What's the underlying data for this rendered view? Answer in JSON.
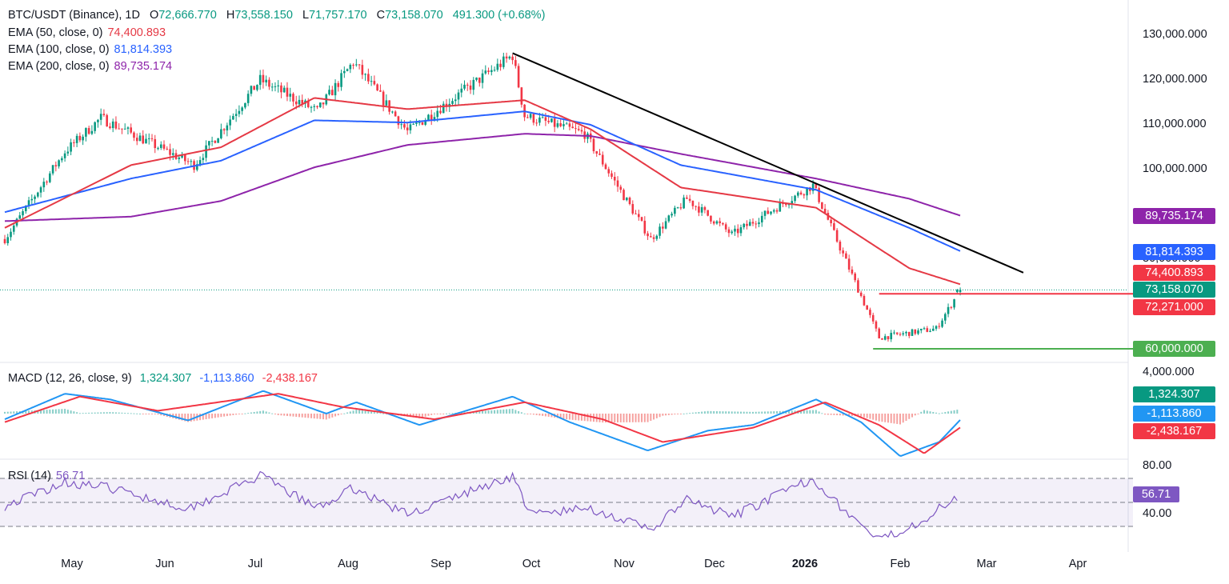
{
  "header": {
    "symbol": "BTC/USDT (Binance), 1D",
    "o_label": "O",
    "o": "72,666.770",
    "h_label": "H",
    "h": "73,558.150",
    "l_label": "L",
    "l": "71,757.170",
    "c_label": "C",
    "c": "73,158.070",
    "change": "491.300 (+0.68%)"
  },
  "ema_legend": [
    {
      "label": "EMA (50, close, 0)",
      "value": "74,400.893"
    },
    {
      "label": "EMA (100, close, 0)",
      "value": "81,814.393"
    },
    {
      "label": "EMA (200, close, 0)",
      "value": "89,735.174"
    }
  ],
  "macd_legend": {
    "label": "MACD (12, 26, close, 9)",
    "hist": "1,324.307",
    "macd": "-1,113.860",
    "signal": "-2,438.167"
  },
  "rsi_legend": {
    "label": "RSI (14)",
    "value": "56.71"
  },
  "price_labels": {
    "ema200": "89,735.174",
    "ema100": "81,814.393",
    "ema50": "74,400.893",
    "last": "73,158.070",
    "resistance": "72,271.000",
    "support": "60,000.000"
  },
  "macd_labels": {
    "hist": "1,324.307",
    "macd": "-1,113.860",
    "signal": "-2,438.167"
  },
  "rsi_label": "56.71",
  "colors": {
    "up": "#089981",
    "down": "#f23645",
    "ema50": "#e53945",
    "ema100": "#2962ff",
    "ema200": "#8e24aa",
    "trendline": "#000000",
    "support": "#4caf50",
    "resistance": "#f23645",
    "rsi": "#7e57c2",
    "macd": "#2196f3",
    "signal": "#f23645"
  },
  "chart_data": [
    {
      "type": "candlestick",
      "panel": "price",
      "title": "BTC/USDT (Binance), 1D",
      "y_ticks": [
        "130,000.000",
        "120,000.000",
        "110,000.000",
        "100,000.000",
        "80,000.000"
      ],
      "x_ticks": [
        "May",
        "Jun",
        "Jul",
        "Aug",
        "Sep",
        "Oct",
        "Nov",
        "Dec",
        "2026",
        "Feb",
        "Mar",
        "Apr"
      ],
      "ylim": [
        56000,
        134000
      ],
      "key_points": [
        {
          "date": "2025-04-20",
          "close": 84500
        },
        {
          "date": "2025-05-10",
          "close": 104000
        },
        {
          "date": "2025-05-22",
          "close": 111500
        },
        {
          "date": "2025-06-22",
          "close": 101000
        },
        {
          "date": "2025-07-14",
          "close": 120000
        },
        {
          "date": "2025-08-02",
          "close": 113000
        },
        {
          "date": "2025-08-14",
          "close": 124000
        },
        {
          "date": "2025-09-01",
          "close": 108500
        },
        {
          "date": "2025-10-06",
          "close": 125500
        },
        {
          "date": "2025-10-10",
          "close": 112000
        },
        {
          "date": "2025-10-30",
          "close": 108000
        },
        {
          "date": "2025-11-21",
          "close": 84500
        },
        {
          "date": "2025-12-03",
          "close": 93500
        },
        {
          "date": "2025-12-18",
          "close": 85500
        },
        {
          "date": "2026-01-14",
          "close": 96500
        },
        {
          "date": "2026-02-05",
          "close": 62500
        },
        {
          "date": "2026-02-24",
          "close": 64500
        },
        {
          "date": "2026-03-04",
          "close": 73158
        }
      ],
      "ema50": [
        [
          "2025-04-20",
          87000
        ],
        [
          "2025-06-01",
          101000
        ],
        [
          "2025-07-01",
          105000
        ],
        [
          "2025-08-01",
          116000
        ],
        [
          "2025-09-01",
          113500
        ],
        [
          "2025-10-10",
          115500
        ],
        [
          "2025-11-01",
          109000
        ],
        [
          "2025-12-01",
          96000
        ],
        [
          "2026-01-15",
          91500
        ],
        [
          "2026-02-15",
          78000
        ],
        [
          "2026-03-04",
          74400.893
        ]
      ],
      "ema100": [
        [
          "2025-04-20",
          90500
        ],
        [
          "2025-06-01",
          98000
        ],
        [
          "2025-07-01",
          102000
        ],
        [
          "2025-08-01",
          111000
        ],
        [
          "2025-09-01",
          110500
        ],
        [
          "2025-10-10",
          113000
        ],
        [
          "2025-11-01",
          110000
        ],
        [
          "2025-12-01",
          101000
        ],
        [
          "2026-01-15",
          95500
        ],
        [
          "2026-02-15",
          87000
        ],
        [
          "2026-03-04",
          81814.393
        ]
      ],
      "ema200": [
        [
          "2025-04-20",
          88500
        ],
        [
          "2025-06-01",
          89500
        ],
        [
          "2025-07-01",
          93000
        ],
        [
          "2025-08-01",
          100500
        ],
        [
          "2025-09-01",
          105500
        ],
        [
          "2025-10-10",
          108000
        ],
        [
          "2025-11-01",
          107500
        ],
        [
          "2025-12-01",
          103500
        ],
        [
          "2026-01-15",
          98000
        ],
        [
          "2026-02-15",
          93500
        ],
        [
          "2026-03-04",
          89735.174
        ]
      ],
      "trendline": [
        [
          "2025-10-06",
          126000
        ],
        [
          "2026-03-25",
          77000
        ]
      ],
      "resistance": 72271,
      "support": 60000
    },
    {
      "type": "line",
      "panel": "macd",
      "title": "MACD (12, 26, close, 9)",
      "y_ticks": [
        "4,000.000"
      ],
      "macd": [
        [
          "2025-04-20",
          -1000
        ],
        [
          "2025-05-10",
          3500
        ],
        [
          "2025-05-25",
          2500
        ],
        [
          "2025-06-20",
          -1200
        ],
        [
          "2025-07-15",
          4000
        ],
        [
          "2025-08-05",
          0
        ],
        [
          "2025-08-15",
          2000
        ],
        [
          "2025-09-05",
          -2000
        ],
        [
          "2025-10-06",
          3000
        ],
        [
          "2025-10-25",
          -1500
        ],
        [
          "2025-11-20",
          -6500
        ],
        [
          "2025-12-10",
          -3000
        ],
        [
          "2025-12-25",
          -2000
        ],
        [
          "2026-01-15",
          2500
        ],
        [
          "2026-01-30",
          -1500
        ],
        [
          "2026-02-12",
          -7500
        ],
        [
          "2026-02-25",
          -5000
        ],
        [
          "2026-03-04",
          -1113.86
        ]
      ],
      "signal": [
        [
          "2025-04-20",
          -1500
        ],
        [
          "2025-05-15",
          3000
        ],
        [
          "2025-06-10",
          500
        ],
        [
          "2025-07-20",
          3500
        ],
        [
          "2025-08-10",
          1200
        ],
        [
          "2025-09-10",
          -1000
        ],
        [
          "2025-10-10",
          2000
        ],
        [
          "2025-11-05",
          -1000
        ],
        [
          "2025-11-25",
          -5000
        ],
        [
          "2025-12-25",
          -2500
        ],
        [
          "2026-01-18",
          2000
        ],
        [
          "2026-02-05",
          -2000
        ],
        [
          "2026-02-20",
          -7000
        ],
        [
          "2026-03-04",
          -2438.167
        ]
      ],
      "histogram_last": 1324.307
    },
    {
      "type": "line",
      "panel": "rsi",
      "title": "RSI (14)",
      "y_ticks": [
        "80.00",
        "40.00"
      ],
      "levels": [
        70,
        50,
        30
      ],
      "rsi": [
        [
          "2025-04-20",
          47
        ],
        [
          "2025-05-10",
          67
        ],
        [
          "2025-05-25",
          62
        ],
        [
          "2025-06-20",
          45
        ],
        [
          "2025-07-14",
          72
        ],
        [
          "2025-08-02",
          45
        ],
        [
          "2025-08-14",
          62
        ],
        [
          "2025-09-01",
          40
        ],
        [
          "2025-10-06",
          72
        ],
        [
          "2025-10-12",
          40
        ],
        [
          "2025-11-01",
          45
        ],
        [
          "2025-11-21",
          27
        ],
        [
          "2025-12-03",
          52
        ],
        [
          "2025-12-18",
          38
        ],
        [
          "2026-01-14",
          70
        ],
        [
          "2026-01-25",
          42
        ],
        [
          "2026-02-05",
          18
        ],
        [
          "2026-02-20",
          36
        ],
        [
          "2026-03-04",
          56.71
        ]
      ]
    }
  ]
}
